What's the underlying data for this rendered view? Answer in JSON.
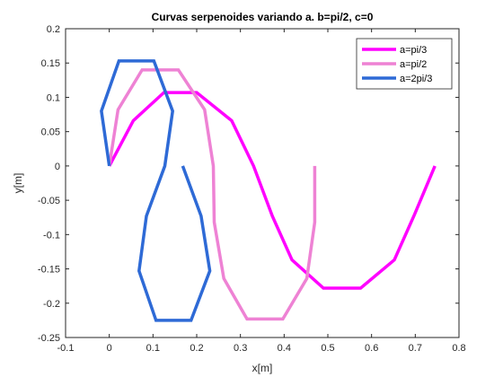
{
  "chart_data": {
    "type": "line",
    "title": "Curvas serpenoides variando a. b=pi/2, c=0",
    "xlabel": "x[m]",
    "ylabel": "y[m]",
    "xlim": [
      -0.1,
      0.8
    ],
    "ylim": [
      -0.25,
      0.2
    ],
    "xticks": [
      -0.1,
      0,
      0.1,
      0.2,
      0.3,
      0.4,
      0.5,
      0.6,
      0.7,
      0.8
    ],
    "xtick_labels": [
      "-0.1",
      "0",
      "0.1",
      "0.2",
      "0.3",
      "0.4",
      "0.5",
      "0.6",
      "0.7",
      "0.8"
    ],
    "yticks": [
      -0.25,
      -0.2,
      -0.15,
      -0.1,
      -0.05,
      0,
      0.05,
      0.1,
      0.15,
      0.2
    ],
    "ytick_labels": [
      "-0.25",
      "-0.2",
      "-0.15",
      "-0.1",
      "-0.05",
      "0",
      "0.05",
      "0.1",
      "0.15",
      "0.2"
    ],
    "grid": false,
    "legend_position": "top-right",
    "series": [
      {
        "name": "a=pi/3",
        "color": "#ff00ff",
        "points": [
          [
            0,
            0
          ],
          [
            0.055,
            0.066
          ],
          [
            0.125,
            0.107
          ],
          [
            0.2,
            0.107
          ],
          [
            0.28,
            0.066
          ],
          [
            0.33,
            0.0
          ],
          [
            0.373,
            -0.073
          ],
          [
            0.418,
            -0.137
          ],
          [
            0.49,
            -0.178
          ],
          [
            0.575,
            -0.178
          ],
          [
            0.652,
            -0.137
          ],
          [
            0.698,
            -0.071
          ],
          [
            0.745,
            0.0
          ]
        ]
      },
      {
        "name": "a=pi/2",
        "color": "#ee82d4",
        "points": [
          [
            0,
            0
          ],
          [
            0.02,
            0.082
          ],
          [
            0.075,
            0.14
          ],
          [
            0.158,
            0.14
          ],
          [
            0.218,
            0.082
          ],
          [
            0.238,
            0.0
          ],
          [
            0.24,
            -0.082
          ],
          [
            0.262,
            -0.164
          ],
          [
            0.315,
            -0.223
          ],
          [
            0.397,
            -0.223
          ],
          [
            0.452,
            -0.164
          ],
          [
            0.47,
            -0.082
          ],
          [
            0.47,
            0.0
          ]
        ]
      },
      {
        "name": "a=2pi/3",
        "color": "#2e6ad6",
        "points": [
          [
            0,
            0
          ],
          [
            -0.018,
            0.08
          ],
          [
            0.022,
            0.153
          ],
          [
            0.102,
            0.153
          ],
          [
            0.145,
            0.08
          ],
          [
            0.127,
            0.0
          ],
          [
            0.085,
            -0.073
          ],
          [
            0.068,
            -0.153
          ],
          [
            0.107,
            -0.225
          ],
          [
            0.187,
            -0.225
          ],
          [
            0.23,
            -0.153
          ],
          [
            0.21,
            -0.073
          ],
          [
            0.168,
            0.0
          ]
        ]
      }
    ]
  }
}
